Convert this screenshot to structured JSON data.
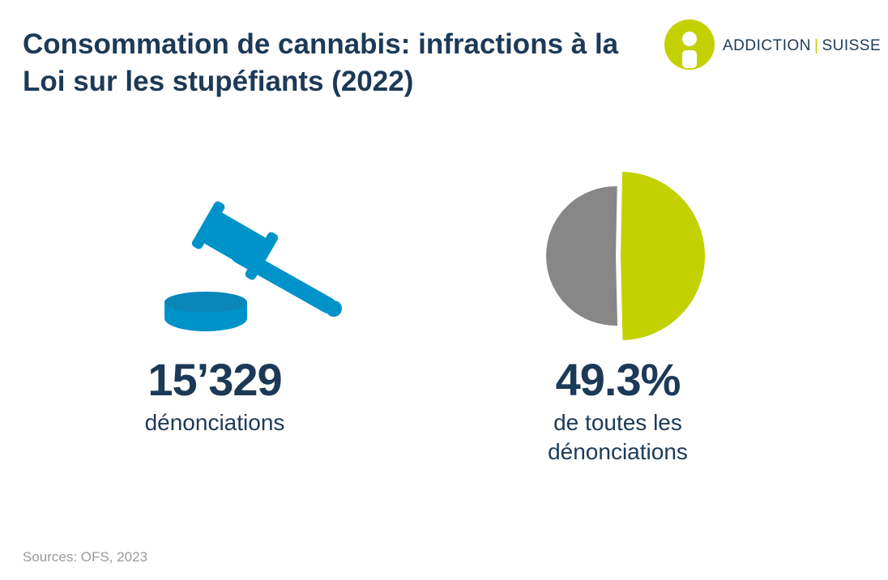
{
  "header": {
    "title": "Consommation de cannabis: infractions à la Loi sur les stupéfiants (2022)"
  },
  "logo": {
    "part1": "ADDICTION",
    "separator": "|",
    "part2": "SUISSE",
    "icon": "addiction-suisse-logo-icon",
    "color": "#c3d100"
  },
  "metrics": {
    "left": {
      "icon": "gavel-icon",
      "icon_color": "#0093c9",
      "value": "15’329",
      "label": "dénonciations"
    },
    "right": {
      "value": "49.3%",
      "label_line1": "de toutes les",
      "label_line2": "dénonciations"
    }
  },
  "chart_data": {
    "type": "pie",
    "slices": [
      {
        "value": 49.3,
        "color": "#c3d100",
        "exploded": true
      },
      {
        "value": 50.7,
        "color": "#878787",
        "exploded": false
      }
    ]
  },
  "footer": {
    "source": "Sources: OFS, 2023"
  }
}
